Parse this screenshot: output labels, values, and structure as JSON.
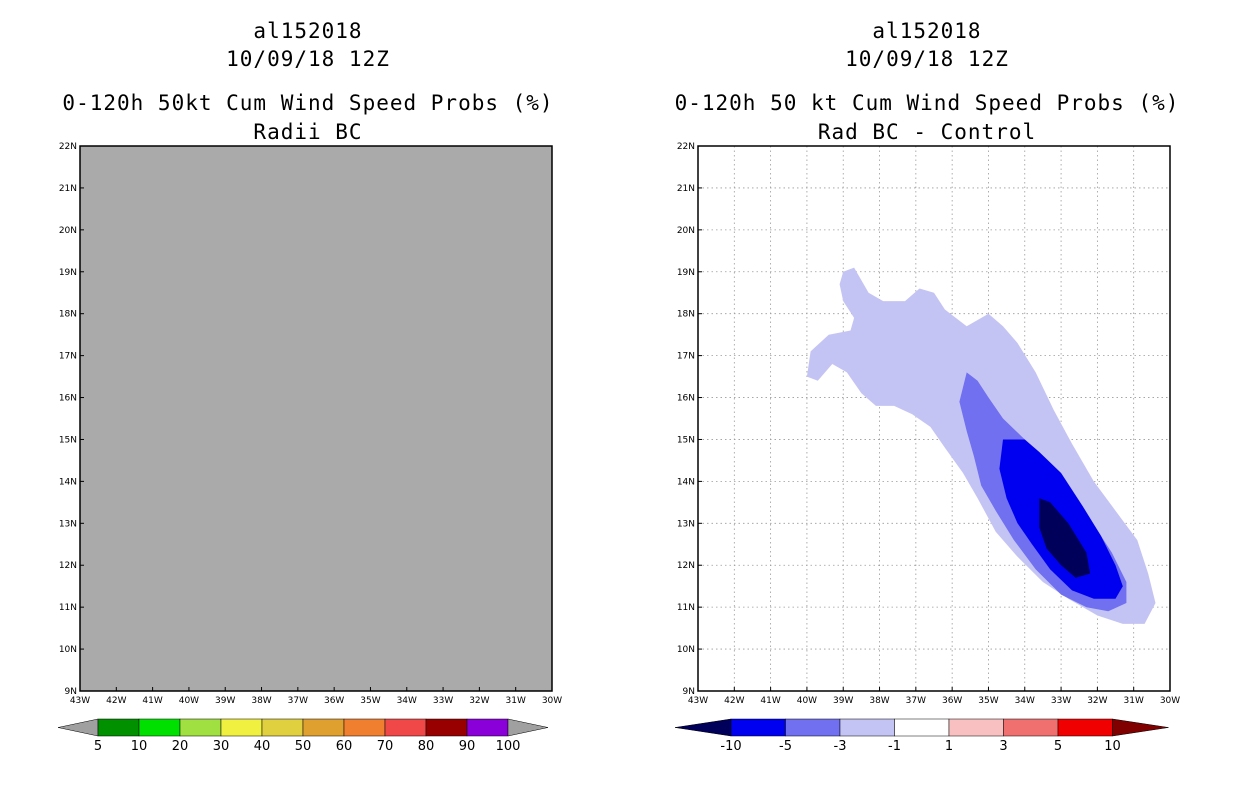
{
  "colors": {
    "background": "#ffffff",
    "missing_fill": "#aaaaaa",
    "grid": "#9a9a9a",
    "left_scale": [
      "#a0a0a0",
      "#009000",
      "#00e000",
      "#a0e040",
      "#f0f040",
      "#e0d040",
      "#e0a030",
      "#f08030",
      "#f04848",
      "#980000",
      "#8a00d8",
      "#a0a0a0"
    ],
    "right_scale": [
      "#00005a",
      "#0000f0",
      "#7070f0",
      "#c4c4f4",
      "#ffffff",
      "#f8c0c0",
      "#f07070",
      "#f00000",
      "#800000"
    ],
    "diff_contours": [
      "#c4c4f4",
      "#7070f0",
      "#0000f0",
      "#00005a"
    ]
  },
  "chart_data": [
    {
      "type": "heatmap",
      "storm_id": "al152018",
      "date": "10/09/18 12Z",
      "title": "0-120h 50kt Cum Wind Speed Probs (%)",
      "subtitle": "Radii BC",
      "xlabel": "",
      "ylabel": "",
      "xlim": [
        -43,
        -30
      ],
      "ylim": [
        9,
        22
      ],
      "grid": false,
      "x_ticks": [
        "43W",
        "42W",
        "41W",
        "40W",
        "39W",
        "38W",
        "37W",
        "36W",
        "35W",
        "34W",
        "33W",
        "32W",
        "31W",
        "30W"
      ],
      "y_ticks": [
        "9N",
        "10N",
        "11N",
        "12N",
        "13N",
        "14N",
        "15N",
        "16N",
        "17N",
        "18N",
        "19N",
        "20N",
        "21N",
        "22N"
      ],
      "field": "missing (uniform gray)",
      "colorbar": {
        "labels": [
          "5",
          "10",
          "20",
          "30",
          "40",
          "50",
          "60",
          "70",
          "80",
          "90",
          "100"
        ]
      }
    },
    {
      "type": "heatmap",
      "storm_id": "al152018",
      "date": "10/09/18 12Z",
      "title": "0-120h 50 kt Cum Wind Speed Probs (%)",
      "subtitle": "Rad BC - Control",
      "xlabel": "",
      "ylabel": "",
      "xlim": [
        -43,
        -30
      ],
      "ylim": [
        9,
        22
      ],
      "grid": true,
      "x_ticks": [
        "43W",
        "42W",
        "41W",
        "40W",
        "39W",
        "38W",
        "37W",
        "36W",
        "35W",
        "34W",
        "33W",
        "32W",
        "31W",
        "30W"
      ],
      "y_ticks": [
        "9N",
        "10N",
        "11N",
        "12N",
        "13N",
        "14N",
        "15N",
        "16N",
        "17N",
        "18N",
        "19N",
        "20N",
        "21N",
        "22N"
      ],
      "contours": [
        {
          "level": "-1 to -3",
          "color_index": 0,
          "points": [
            [
              -39.0,
              19.0
            ],
            [
              -38.7,
              19.1
            ],
            [
              -38.5,
              18.8
            ],
            [
              -38.3,
              18.5
            ],
            [
              -37.9,
              18.3
            ],
            [
              -37.3,
              18.3
            ],
            [
              -36.9,
              18.6
            ],
            [
              -36.5,
              18.5
            ],
            [
              -36.2,
              18.1
            ],
            [
              -35.6,
              17.7
            ],
            [
              -35.0,
              18.0
            ],
            [
              -34.6,
              17.7
            ],
            [
              -34.2,
              17.3
            ],
            [
              -33.7,
              16.6
            ],
            [
              -33.2,
              15.7
            ],
            [
              -32.7,
              14.9
            ],
            [
              -32.1,
              14.0
            ],
            [
              -31.5,
              13.3
            ],
            [
              -30.9,
              12.6
            ],
            [
              -30.6,
              11.8
            ],
            [
              -30.4,
              11.1
            ],
            [
              -30.7,
              10.6
            ],
            [
              -31.3,
              10.6
            ],
            [
              -32.0,
              10.8
            ],
            [
              -32.8,
              11.2
            ],
            [
              -33.5,
              11.6
            ],
            [
              -34.2,
              12.2
            ],
            [
              -34.8,
              12.8
            ],
            [
              -35.3,
              13.6
            ],
            [
              -35.7,
              14.2
            ],
            [
              -36.2,
              14.8
            ],
            [
              -36.6,
              15.3
            ],
            [
              -37.1,
              15.6
            ],
            [
              -37.6,
              15.8
            ],
            [
              -38.1,
              15.8
            ],
            [
              -38.5,
              16.1
            ],
            [
              -38.9,
              16.6
            ],
            [
              -39.3,
              16.8
            ],
            [
              -39.7,
              16.4
            ],
            [
              -40.0,
              16.5
            ],
            [
              -39.9,
              17.1
            ],
            [
              -39.4,
              17.5
            ],
            [
              -38.8,
              17.6
            ],
            [
              -38.7,
              17.9
            ],
            [
              -39.0,
              18.3
            ],
            [
              -39.1,
              18.7
            ]
          ]
        },
        {
          "level": "-3 to -5",
          "color_index": 1,
          "points": [
            [
              -35.6,
              16.6
            ],
            [
              -35.3,
              16.4
            ],
            [
              -35.0,
              16.0
            ],
            [
              -34.6,
              15.5
            ],
            [
              -34.0,
              15.0
            ],
            [
              -33.4,
              14.5
            ],
            [
              -32.8,
              13.9
            ],
            [
              -32.2,
              13.1
            ],
            [
              -31.6,
              12.3
            ],
            [
              -31.2,
              11.6
            ],
            [
              -31.2,
              11.1
            ],
            [
              -31.7,
              10.9
            ],
            [
              -32.3,
              11.0
            ],
            [
              -33.0,
              11.3
            ],
            [
              -33.7,
              11.9
            ],
            [
              -34.3,
              12.6
            ],
            [
              -34.8,
              13.3
            ],
            [
              -35.2,
              13.9
            ],
            [
              -35.4,
              14.6
            ],
            [
              -35.6,
              15.2
            ],
            [
              -35.8,
              15.9
            ]
          ]
        },
        {
          "level": "-5 to -10",
          "color_index": 2,
          "points": [
            [
              -34.6,
              15.0
            ],
            [
              -34.0,
              15.0
            ],
            [
              -33.6,
              14.7
            ],
            [
              -33.0,
              14.2
            ],
            [
              -32.4,
              13.4
            ],
            [
              -31.9,
              12.7
            ],
            [
              -31.5,
              12.0
            ],
            [
              -31.3,
              11.5
            ],
            [
              -31.5,
              11.2
            ],
            [
              -32.1,
              11.2
            ],
            [
              -32.7,
              11.4
            ],
            [
              -33.3,
              11.9
            ],
            [
              -33.8,
              12.5
            ],
            [
              -34.2,
              13.0
            ],
            [
              -34.5,
              13.6
            ],
            [
              -34.7,
              14.3
            ]
          ]
        },
        {
          "level": "< -10",
          "color_index": 3,
          "points": [
            [
              -33.6,
              13.6
            ],
            [
              -33.3,
              13.5
            ],
            [
              -32.8,
              13.0
            ],
            [
              -32.3,
              12.3
            ],
            [
              -32.2,
              11.8
            ],
            [
              -32.6,
              11.7
            ],
            [
              -33.0,
              12.0
            ],
            [
              -33.4,
              12.4
            ],
            [
              -33.6,
              12.9
            ]
          ]
        }
      ],
      "colorbar": {
        "labels": [
          "-10",
          "-5",
          "-3",
          "-1",
          "1",
          "3",
          "5",
          "10"
        ]
      }
    }
  ]
}
